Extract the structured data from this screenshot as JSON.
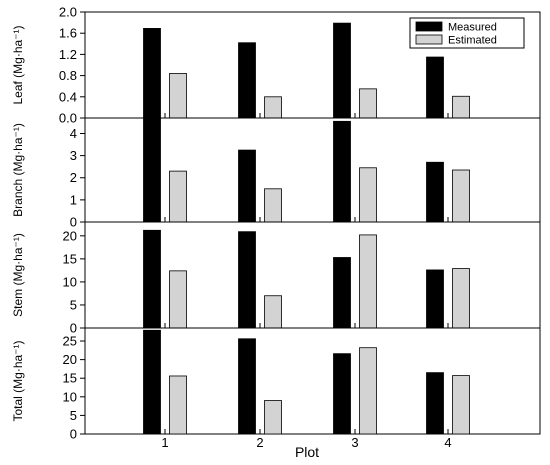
{
  "chart_data": {
    "type": "bar",
    "x_label": "Plot",
    "categories": [
      "1",
      "2",
      "3",
      "4"
    ],
    "legend": {
      "placement": "top-right",
      "entries": [
        {
          "label": "Measured",
          "color": "#000000"
        },
        {
          "label": "Estimated",
          "color": "#d3d3d3"
        }
      ]
    },
    "series_colors": [
      "#000000",
      "#d3d3d3"
    ],
    "panels": [
      {
        "ylabel": "Leaf (Mg·ha⁻¹)",
        "ylim": [
          0,
          2.0
        ],
        "yticks": [
          "0.0",
          "0.4",
          "0.8",
          "1.2",
          "1.6",
          "2.0"
        ],
        "yticks_values": [
          0.0,
          0.4,
          0.8,
          1.2,
          1.6,
          2.0
        ],
        "series": [
          {
            "name": "Measured",
            "values": [
              1.69,
              1.42,
              1.79,
              1.15
            ]
          },
          {
            "name": "Estimated",
            "values": [
              0.84,
              0.4,
              0.55,
              0.41
            ]
          }
        ]
      },
      {
        "ylabel": "Branch (Mg·ha⁻¹)",
        "ylim": [
          0,
          4.7
        ],
        "yticks": [
          "0",
          "1",
          "2",
          "3",
          "4"
        ],
        "yticks_values": [
          0,
          1,
          2,
          3,
          4
        ],
        "series": [
          {
            "name": "Measured",
            "values": [
              4.75,
              3.25,
              4.55,
              2.7
            ]
          },
          {
            "name": "Estimated",
            "values": [
              2.3,
              1.5,
              2.45,
              2.35
            ]
          }
        ]
      },
      {
        "ylabel": "Stem (Mg·ha⁻¹)",
        "ylim": [
          0,
          23
        ],
        "yticks": [
          "0",
          "5",
          "10",
          "15",
          "20"
        ],
        "yticks_values": [
          0,
          5,
          10,
          15,
          20
        ],
        "series": [
          {
            "name": "Measured",
            "values": [
              21.2,
              20.9,
              15.3,
              12.6
            ]
          },
          {
            "name": "Estimated",
            "values": [
              12.4,
              7.0,
              20.2,
              12.9
            ]
          }
        ]
      },
      {
        "ylabel": "Total (Mg·ha⁻¹)",
        "ylim": [
          0,
          28.5
        ],
        "yticks": [
          "0",
          "5",
          "10",
          "15",
          "20",
          "25"
        ],
        "yticks_values": [
          0,
          5,
          10,
          15,
          20,
          25
        ],
        "series": [
          {
            "name": "Measured",
            "values": [
              27.9,
              25.6,
              21.6,
              16.5
            ]
          },
          {
            "name": "Estimated",
            "values": [
              15.6,
              9.0,
              23.2,
              15.7
            ]
          }
        ]
      }
    ]
  }
}
